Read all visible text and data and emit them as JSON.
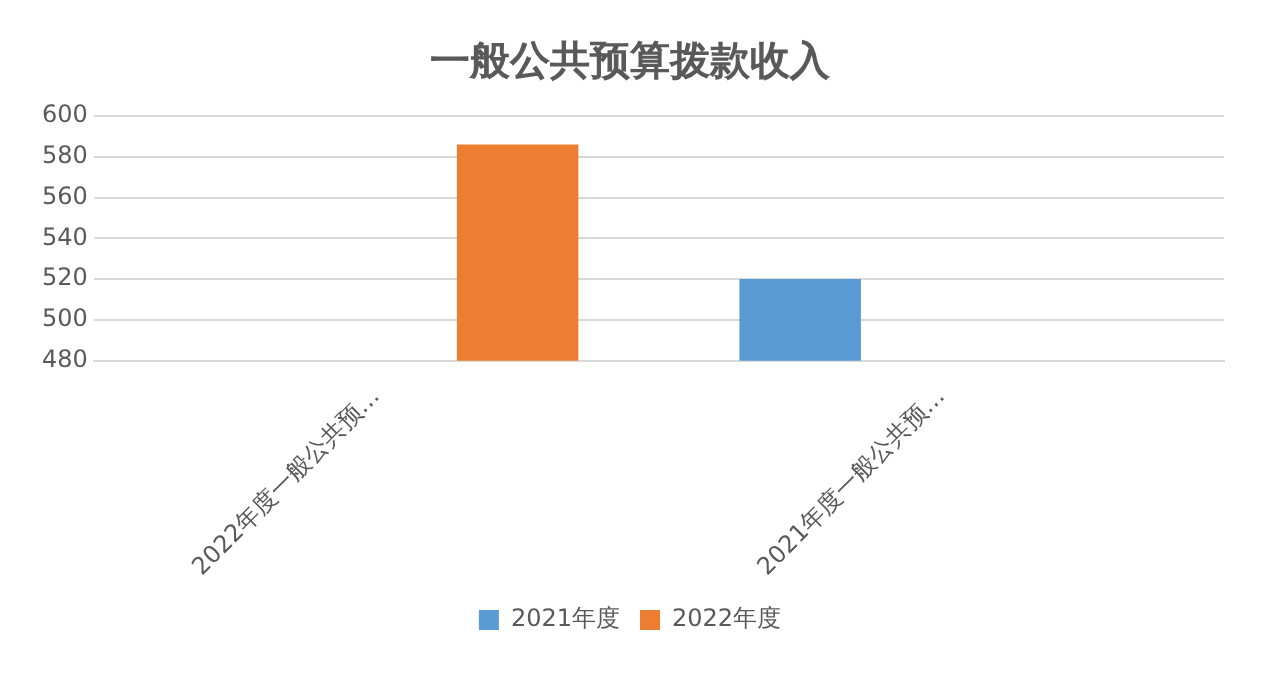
{
  "chart_data": {
    "type": "bar",
    "title": "一般公共预算拨款收入",
    "categories": [
      "2022年度一般公共预…",
      "2021年度一般公共预…"
    ],
    "series": [
      {
        "name": "2021年度",
        "color": "#5b9bd5",
        "values": [
          null,
          520
        ]
      },
      {
        "name": "2022年度",
        "color": "#ed7d31",
        "values": [
          586,
          null
        ]
      }
    ],
    "ylim": [
      480,
      600
    ],
    "yticks": [
      480,
      500,
      520,
      540,
      560,
      580,
      600
    ],
    "grid": "y",
    "legend": "bottom"
  }
}
